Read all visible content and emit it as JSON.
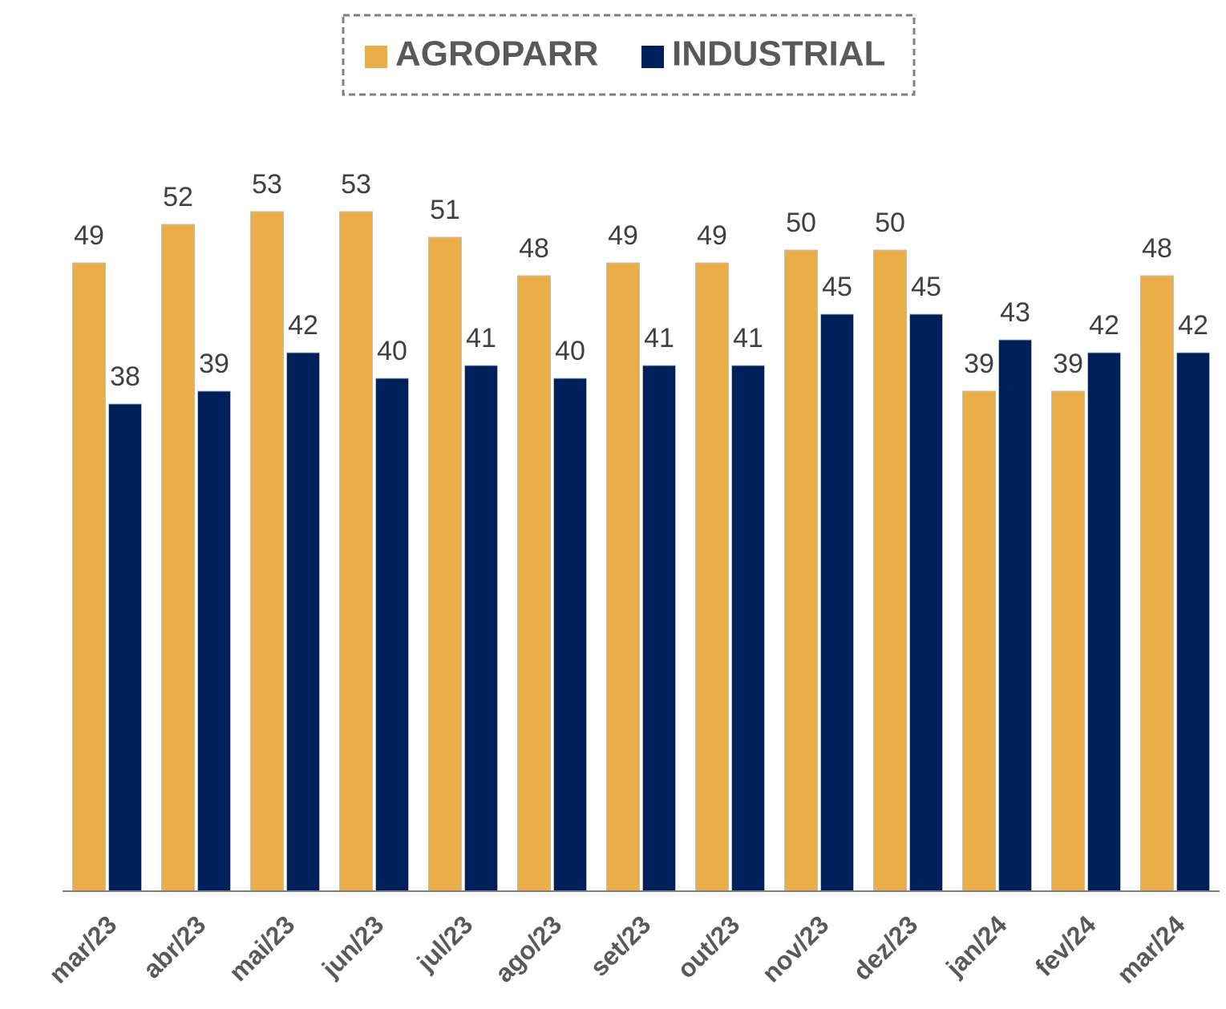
{
  "chart_data": {
    "type": "bar",
    "categories": [
      "mar/23",
      "abr/23",
      "mai/23",
      "jun/23",
      "jul/23",
      "ago/23",
      "set/23",
      "out/23",
      "nov/23",
      "dez/23",
      "jan/24",
      "fev/24",
      "mar/24"
    ],
    "series": [
      {
        "name": "AGROPARR",
        "color": "#E9AE48",
        "values": [
          49,
          52,
          53,
          53,
          51,
          48,
          49,
          49,
          50,
          50,
          39,
          39,
          48
        ]
      },
      {
        "name": "INDUSTRIAL",
        "color": "#00205C",
        "values": [
          38,
          39,
          42,
          40,
          41,
          40,
          41,
          41,
          45,
          45,
          43,
          42,
          42
        ]
      }
    ],
    "ylim": [
      0,
      60
    ],
    "legend": "top"
  }
}
